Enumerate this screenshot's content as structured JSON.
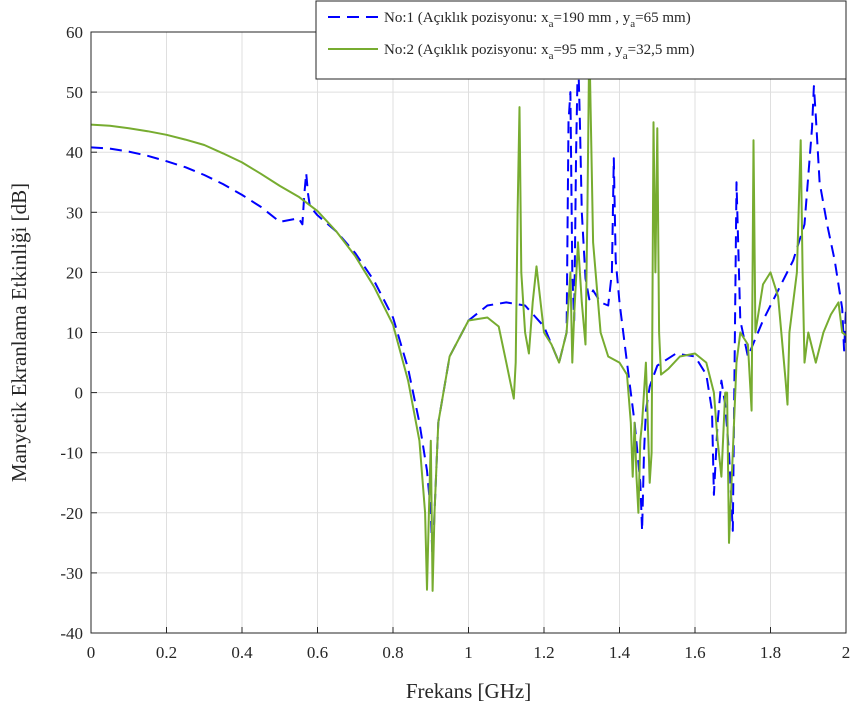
{
  "chart_data": {
    "type": "line",
    "title": "",
    "xlabel": "Frekans [GHz]",
    "ylabel": "Manyetik Ekranlama Etkinliği [dB]",
    "xlim": [
      0,
      2
    ],
    "ylim": [
      -40,
      60
    ],
    "xticks": [
      "0",
      "0.2",
      "0.4",
      "0.6",
      "0.8",
      "1",
      "1.2",
      "1.4",
      "1.6",
      "1.8",
      "2"
    ],
    "yticks": [
      "-40",
      "-30",
      "-20",
      "-10",
      "0",
      "10",
      "20",
      "30",
      "40",
      "50",
      "60"
    ],
    "grid": true,
    "legend_position": "top-right",
    "series": [
      {
        "name": "No:1 (Açıklık pozisyonu: x_a=190 mm , y_a=65 mm)",
        "legend": {
          "prefix": "No:1 (Açıklık pozisyonu: x",
          "sub1": "a",
          "mid": "=190 mm , y",
          "sub2": "a",
          "suffix": "=65 mm)"
        },
        "color": "#0000ff",
        "style": "dashed",
        "x": [
          0,
          0.05,
          0.1,
          0.15,
          0.2,
          0.25,
          0.3,
          0.35,
          0.4,
          0.45,
          0.5,
          0.55,
          0.56,
          0.565,
          0.57,
          0.575,
          0.58,
          0.6,
          0.65,
          0.7,
          0.75,
          0.8,
          0.84,
          0.87,
          0.89,
          0.9,
          0.905,
          0.91,
          0.92,
          0.95,
          1.0,
          1.05,
          1.1,
          1.15,
          1.2,
          1.24,
          1.26,
          1.265,
          1.27,
          1.275,
          1.28,
          1.285,
          1.29,
          1.295,
          1.3,
          1.31,
          1.32,
          1.33,
          1.35,
          1.37,
          1.38,
          1.385,
          1.39,
          1.4,
          1.42,
          1.44,
          1.455,
          1.46,
          1.465,
          1.47,
          1.48,
          1.5,
          1.55,
          1.6,
          1.63,
          1.645,
          1.65,
          1.66,
          1.67,
          1.68,
          1.69,
          1.7,
          1.705,
          1.71,
          1.72,
          1.74,
          1.78,
          1.82,
          1.86,
          1.89,
          1.91,
          1.915,
          1.92,
          1.93,
          1.95,
          1.97,
          1.99,
          1.995,
          2.0
        ],
        "y": [
          40.8,
          40.6,
          40.1,
          39.4,
          38.5,
          37.5,
          36.2,
          34.7,
          32.9,
          30.9,
          28.4,
          29.0,
          28.0,
          33.0,
          36.5,
          33.0,
          31.0,
          29.5,
          26.8,
          23.2,
          18.6,
          12.5,
          4.0,
          -5.0,
          -13.0,
          -20.0,
          -28.0,
          -20.0,
          -5.0,
          6.0,
          12.0,
          14.5,
          15.0,
          14.5,
          11.0,
          5.0,
          10.0,
          45.0,
          50.0,
          20.0,
          12.0,
          40.0,
          57.0,
          45.0,
          30.0,
          19.0,
          15.5,
          17.0,
          15.0,
          14.5,
          20.0,
          39.0,
          22.0,
          15.0,
          5.0,
          -5.0,
          -15.0,
          -23.0,
          -10.0,
          -3.0,
          1.0,
          4.5,
          6.5,
          6.0,
          3.0,
          -3.0,
          -17.0,
          -5.0,
          2.0,
          -2.0,
          -10.0,
          -23.0,
          5.0,
          35.0,
          12.0,
          6.0,
          12.0,
          17.0,
          22.0,
          28.0,
          44.0,
          51.0,
          46.0,
          35.0,
          28.0,
          22.0,
          14.0,
          7.0,
          14.0
        ]
      },
      {
        "name": "No:2 (Açıklık pozisyonu: x_a=95 mm , y_a=32,5 mm)",
        "legend": {
          "prefix": "No:2 (Açıklık pozisyonu: x",
          "sub1": "a",
          "mid": "=95 mm , y",
          "sub2": "a",
          "suffix": "=32,5 mm)"
        },
        "color": "#77ac30",
        "style": "solid",
        "x": [
          0,
          0.05,
          0.1,
          0.15,
          0.2,
          0.25,
          0.3,
          0.35,
          0.4,
          0.45,
          0.5,
          0.55,
          0.6,
          0.65,
          0.7,
          0.75,
          0.8,
          0.84,
          0.87,
          0.885,
          0.89,
          0.895,
          0.9,
          0.905,
          0.91,
          0.92,
          0.95,
          1.0,
          1.05,
          1.08,
          1.1,
          1.11,
          1.12,
          1.125,
          1.13,
          1.135,
          1.14,
          1.15,
          1.16,
          1.17,
          1.18,
          1.2,
          1.22,
          1.24,
          1.26,
          1.27,
          1.275,
          1.28,
          1.29,
          1.3,
          1.31,
          1.315,
          1.32,
          1.33,
          1.35,
          1.37,
          1.4,
          1.42,
          1.43,
          1.435,
          1.44,
          1.445,
          1.45,
          1.455,
          1.46,
          1.465,
          1.47,
          1.475,
          1.48,
          1.485,
          1.49,
          1.495,
          1.5,
          1.505,
          1.51,
          1.53,
          1.56,
          1.6,
          1.63,
          1.65,
          1.66,
          1.67,
          1.68,
          1.685,
          1.69,
          1.7,
          1.71,
          1.72,
          1.74,
          1.75,
          1.755,
          1.76,
          1.78,
          1.8,
          1.82,
          1.84,
          1.845,
          1.85,
          1.87,
          1.88,
          1.885,
          1.89,
          1.9,
          1.92,
          1.94,
          1.96,
          1.98,
          1.99,
          2.0
        ],
        "y": [
          44.6,
          44.4,
          44.0,
          43.5,
          42.9,
          42.1,
          41.2,
          39.8,
          38.3,
          36.4,
          34.4,
          32.6,
          30.2,
          26.8,
          22.7,
          17.6,
          11.3,
          2.0,
          -8.0,
          -20.0,
          -32.8,
          -20.0,
          -8.0,
          -33.0,
          -20.0,
          -5.0,
          6.0,
          12.0,
          12.5,
          11.0,
          5.0,
          2.0,
          -1.0,
          5.0,
          30.0,
          47.5,
          20.0,
          10.0,
          6.5,
          15.0,
          21.0,
          10.0,
          8.0,
          5.0,
          10.0,
          20.0,
          5.0,
          13.0,
          25.0,
          15.0,
          8.0,
          30.0,
          59.0,
          25.0,
          10.0,
          6.0,
          5.0,
          3.0,
          -5.0,
          -14.0,
          -5.0,
          -14.0,
          -20.0,
          -8.0,
          -5.0,
          0.0,
          5.0,
          -5.0,
          -15.0,
          -10.0,
          45.0,
          20.0,
          44.0,
          10.0,
          3.0,
          4.0,
          6.0,
          6.5,
          5.0,
          0.0,
          -8.0,
          -14.0,
          0.0,
          0.0,
          -25.0,
          -10.0,
          5.0,
          10.0,
          8.0,
          -3.0,
          42.0,
          10.0,
          18.0,
          20.0,
          16.0,
          2.0,
          -2.0,
          10.0,
          20.0,
          42.0,
          20.0,
          5.0,
          10.0,
          5.0,
          10.0,
          13.0,
          15.0,
          10.0,
          9.5
        ]
      }
    ]
  }
}
